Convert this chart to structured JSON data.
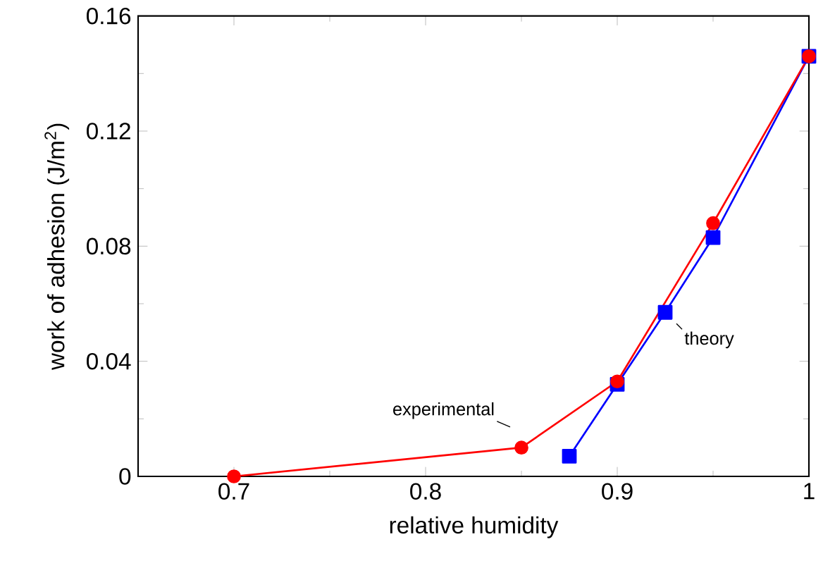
{
  "chart_data": {
    "type": "line",
    "xlabel": "relative humidity",
    "ylabel": "work of adhesion (J/m$^{2}$)",
    "xlim": [
      0.65,
      1.0
    ],
    "ylim": [
      0,
      0.16
    ],
    "xticks": [
      0.7,
      0.8,
      0.9,
      1
    ],
    "yticks": [
      0,
      0.04,
      0.08,
      0.12,
      0.16
    ],
    "line_style": "solid",
    "series": [
      {
        "color": "#0000ff",
        "marker": "square",
        "x": [
          0.875,
          0.9,
          0.925,
          0.95,
          1.0
        ],
        "values": [
          0.007,
          0.032,
          0.057,
          0.083,
          0.146
        ]
      },
      {
        "color": "#ff0000",
        "marker": "circle",
        "x": [
          0.7,
          0.85,
          0.9,
          0.95,
          1.0
        ],
        "values": [
          0.0,
          0.01,
          0.033,
          0.088,
          0.146
        ]
      }
    ],
    "annotations": [
      {
        "text": "experimental",
        "x": 0.85,
        "y": 0.01
      },
      {
        "text": "theory",
        "x": 0.925,
        "y": 0.057
      }
    ]
  }
}
